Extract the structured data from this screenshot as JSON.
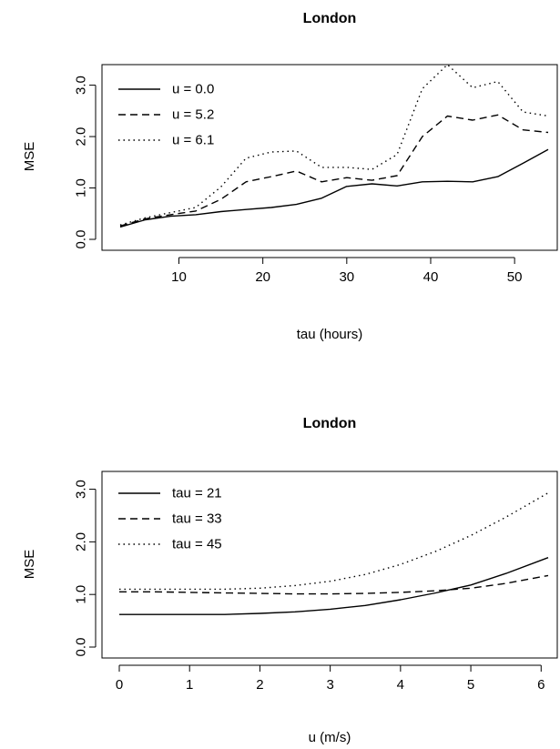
{
  "chart_data": [
    {
      "type": "line",
      "title": "London",
      "xlabel": "tau (hours)",
      "ylabel": "MSE",
      "xlim": [
        3,
        54
      ],
      "ylim": [
        0.0,
        3.4
      ],
      "xticks": [
        "10",
        "20",
        "30",
        "40",
        "50"
      ],
      "yticks": [
        "0.0",
        "1.0",
        "2.0",
        "3.0"
      ],
      "legend_position": "top-left",
      "grid": false,
      "x": [
        3,
        6,
        9,
        12,
        15,
        18,
        21,
        24,
        27,
        30,
        33,
        36,
        39,
        42,
        45,
        48,
        51,
        54
      ],
      "series": [
        {
          "name": "u = 0.0",
          "line_style": "solid",
          "values": [
            0.24,
            0.38,
            0.45,
            0.48,
            0.54,
            0.58,
            0.62,
            0.68,
            0.8,
            1.03,
            1.08,
            1.04,
            1.12,
            1.13,
            1.12,
            1.22,
            1.48,
            1.75
          ]
        },
        {
          "name": "u = 5.2",
          "line_style": "dashed",
          "values": [
            0.26,
            0.4,
            0.48,
            0.55,
            0.78,
            1.12,
            1.22,
            1.33,
            1.12,
            1.2,
            1.15,
            1.24,
            2.0,
            2.4,
            2.32,
            2.42,
            2.13,
            2.08
          ]
        },
        {
          "name": "u = 6.1",
          "line_style": "dotted",
          "values": [
            0.28,
            0.42,
            0.52,
            0.62,
            1.02,
            1.58,
            1.7,
            1.72,
            1.4,
            1.4,
            1.36,
            1.65,
            2.93,
            3.4,
            2.95,
            3.07,
            2.48,
            2.4
          ]
        }
      ]
    },
    {
      "type": "line",
      "title": "London",
      "xlabel": "u (m/s)",
      "ylabel": "MSE",
      "xlim": [
        0,
        6.1
      ],
      "ylim": [
        0.0,
        3.2
      ],
      "xticks": [
        "0",
        "1",
        "2",
        "3",
        "4",
        "5",
        "6"
      ],
      "yticks": [
        "0.0",
        "1.0",
        "2.0",
        "3.0"
      ],
      "legend_position": "top-left",
      "grid": false,
      "x": [
        0,
        0.5,
        1.0,
        1.5,
        2.0,
        2.5,
        3.0,
        3.5,
        4.0,
        4.5,
        5.0,
        5.5,
        6.1
      ],
      "series": [
        {
          "name": "tau = 21",
          "line_style": "solid",
          "values": [
            0.62,
            0.62,
            0.62,
            0.62,
            0.64,
            0.67,
            0.72,
            0.79,
            0.9,
            1.03,
            1.18,
            1.4,
            1.7
          ]
        },
        {
          "name": "tau = 33",
          "line_style": "dashed",
          "values": [
            1.05,
            1.05,
            1.04,
            1.03,
            1.02,
            1.01,
            1.01,
            1.02,
            1.04,
            1.07,
            1.12,
            1.21,
            1.36
          ]
        },
        {
          "name": "tau = 45",
          "line_style": "dotted",
          "values": [
            1.1,
            1.1,
            1.1,
            1.1,
            1.12,
            1.17,
            1.25,
            1.38,
            1.57,
            1.82,
            2.12,
            2.47,
            2.93
          ]
        }
      ]
    }
  ]
}
